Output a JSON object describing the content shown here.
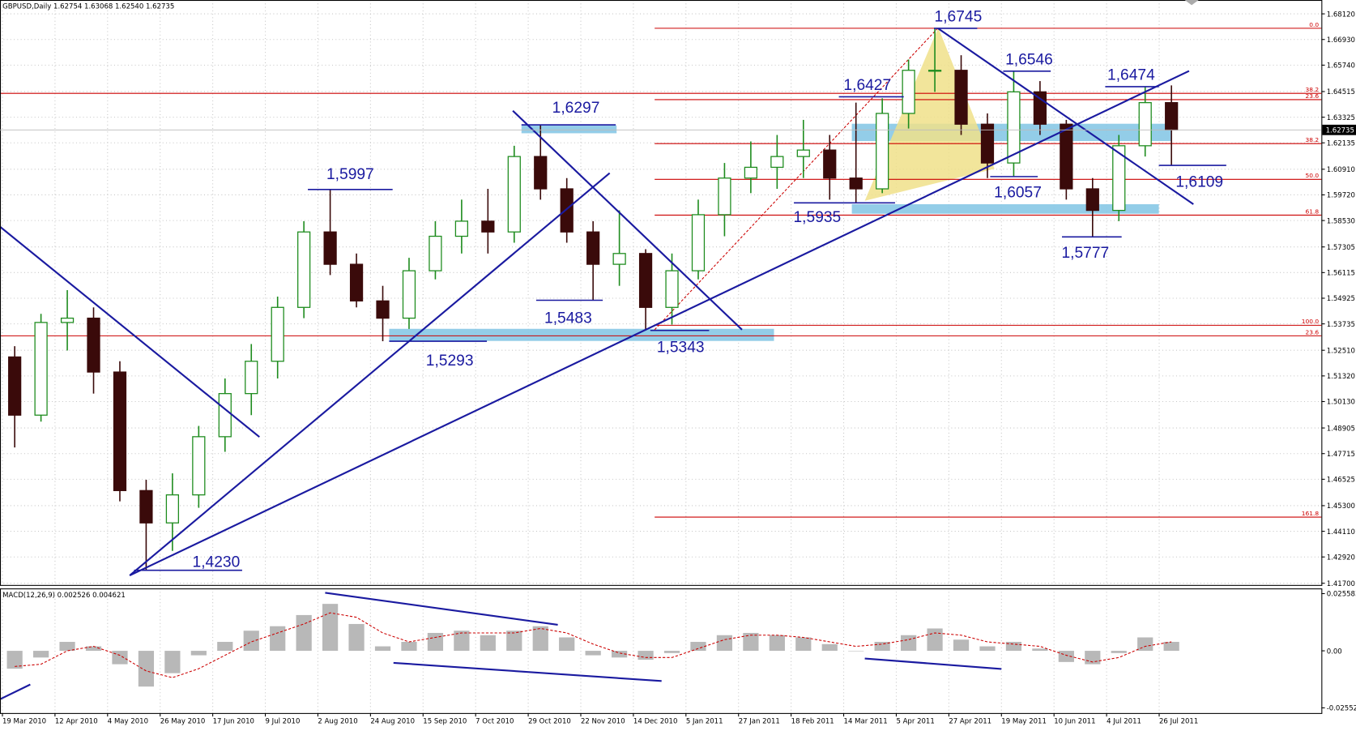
{
  "chart_data": [
    {
      "type": "candlestick",
      "title": "GBPUSD,Daily  1.62754 1.63068 1.62540 1.62735",
      "x_labels": [
        "19 Mar 2010",
        "12 Apr 2010",
        "4 May 2010",
        "26 May 2010",
        "17 Jun 2010",
        "9 Jul 2010",
        "2 Aug 2010",
        "24 Aug 2010",
        "15 Sep 2010",
        "7 Oct 2010",
        "29 Oct 2010",
        "22 Nov 2010",
        "14 Dec 2010",
        "5 Jan 2011",
        "27 Jan 2011",
        "18 Feb 2011",
        "14 Mar 2011",
        "5 Apr 2011",
        "27 Apr 2011",
        "19 May 2011",
        "10 Jun 2011",
        "4 Jul 2011",
        "26 Jul 2011"
      ],
      "open": [
        1.522,
        1.495,
        1.538,
        1.54,
        1.515,
        1.46,
        1.445,
        1.458,
        1.485,
        1.505,
        1.52,
        1.545,
        1.58,
        1.565,
        1.548,
        1.54,
        1.562,
        1.578,
        1.585,
        1.58,
        1.615,
        1.6,
        1.58,
        1.565,
        1.57,
        1.545,
        1.562,
        1.588,
        1.605,
        1.61,
        1.615,
        1.618,
        1.605,
        1.6,
        1.635,
        1.655,
        1.655,
        1.63,
        1.612,
        1.645,
        1.63,
        1.6,
        1.59,
        1.62,
        1.64
      ],
      "high": [
        1.527,
        1.542,
        1.553,
        1.545,
        1.52,
        1.465,
        1.468,
        1.49,
        1.512,
        1.528,
        1.55,
        1.585,
        1.5997,
        1.57,
        1.555,
        1.568,
        1.585,
        1.595,
        1.6,
        1.62,
        1.6297,
        1.605,
        1.585,
        1.59,
        1.572,
        1.57,
        1.595,
        1.612,
        1.622,
        1.625,
        1.632,
        1.625,
        1.64,
        1.642,
        1.66,
        1.6745,
        1.662,
        1.635,
        1.6546,
        1.65,
        1.632,
        1.605,
        1.625,
        1.6474,
        1.648
      ],
      "low": [
        1.48,
        1.492,
        1.525,
        1.505,
        1.455,
        1.423,
        1.432,
        1.452,
        1.478,
        1.495,
        1.512,
        1.54,
        1.56,
        1.545,
        1.5293,
        1.535,
        1.558,
        1.57,
        1.57,
        1.575,
        1.595,
        1.575,
        1.5483,
        1.555,
        1.5343,
        1.537,
        1.558,
        1.578,
        1.598,
        1.6,
        1.605,
        1.595,
        1.5935,
        1.598,
        1.628,
        1.645,
        1.625,
        1.605,
        1.6057,
        1.625,
        1.595,
        1.5777,
        1.585,
        1.615,
        1.6109
      ],
      "close": [
        1.495,
        1.538,
        1.54,
        1.515,
        1.46,
        1.445,
        1.458,
        1.485,
        1.505,
        1.52,
        1.545,
        1.58,
        1.565,
        1.548,
        1.54,
        1.562,
        1.578,
        1.585,
        1.58,
        1.615,
        1.6,
        1.58,
        1.565,
        1.57,
        1.545,
        1.562,
        1.588,
        1.605,
        1.61,
        1.615,
        1.618,
        1.605,
        1.6,
        1.635,
        1.655,
        1.655,
        1.63,
        1.612,
        1.645,
        1.63,
        1.6,
        1.59,
        1.62,
        1.64,
        1.62735
      ],
      "up_color": "#1e8c1e",
      "down_color": "#3a0a0a",
      "ylim": [
        1.417,
        1.6812
      ],
      "yticks": [
        {
          "value": 1.6812,
          "label": "1.68120"
        },
        {
          "value": 1.6693,
          "label": "1.66930"
        },
        {
          "value": 1.6574,
          "label": "1.65740"
        },
        {
          "value": 1.64515,
          "label": "1.64515"
        },
        {
          "value": 1.63325,
          "label": "1.63325"
        },
        {
          "value": 1.62135,
          "label": "1.62135"
        },
        {
          "value": 1.6091,
          "label": "1.60910"
        },
        {
          "value": 1.5972,
          "label": "1.59720"
        },
        {
          "value": 1.5853,
          "label": "1.58530"
        },
        {
          "value": 1.57305,
          "label": "1.57305"
        },
        {
          "value": 1.56115,
          "label": "1.56115"
        },
        {
          "value": 1.54925,
          "label": "1.54925"
        },
        {
          "value": 1.53735,
          "label": "1.53735"
        },
        {
          "value": 1.5251,
          "label": "1.52510"
        },
        {
          "value": 1.5132,
          "label": "1.51320"
        },
        {
          "value": 1.5013,
          "label": "1.50130"
        },
        {
          "value": 1.48905,
          "label": "1.48905"
        },
        {
          "value": 1.47715,
          "label": "1.47715"
        },
        {
          "value": 1.46525,
          "label": "1.46525"
        },
        {
          "value": 1.453,
          "label": "1.45300"
        },
        {
          "value": 1.4411,
          "label": "1.44110"
        },
        {
          "value": 1.4292,
          "label": "1.42920"
        },
        {
          "value": 1.417,
          "label": "1.41700"
        }
      ],
      "grid": true,
      "last_price": {
        "value": 1.62735,
        "label": "1.62735"
      },
      "fib_color": "#cc0000",
      "fib_levels": [
        {
          "value": 1.6745,
          "label": "0.0"
        },
        {
          "value": 1.6443,
          "label": "38.2"
        },
        {
          "value": 1.6414,
          "label": "23.6"
        },
        {
          "value": 1.621,
          "label": "38.2"
        },
        {
          "value": 1.6044,
          "label": "50.0"
        },
        {
          "value": 1.5878,
          "label": "61.8"
        },
        {
          "value": 1.5367,
          "label": "100.0"
        },
        {
          "value": 1.5318,
          "label": "23.6"
        },
        {
          "value": 1.4477,
          "label": "161.8"
        }
      ],
      "annotation_color": "#1a1aa0",
      "annotations": [
        {
          "value": 1.6745,
          "label": "1,6745"
        },
        {
          "value": 1.6546,
          "label": "1,6546"
        },
        {
          "value": 1.6474,
          "label": "1,6474"
        },
        {
          "value": 1.6427,
          "label": "1,6427"
        },
        {
          "value": 1.6297,
          "label": "1,6297"
        },
        {
          "value": 1.5997,
          "label": "1,5997"
        },
        {
          "value": 1.6109,
          "label": "1,6109"
        },
        {
          "value": 1.6057,
          "label": "1,6057"
        },
        {
          "value": 1.5935,
          "label": "1,5935"
        },
        {
          "value": 1.5777,
          "label": "1,5777"
        },
        {
          "value": 1.5483,
          "label": "1,5483"
        },
        {
          "value": 1.5293,
          "label": "1,5293"
        },
        {
          "value": 1.5343,
          "label": "1,5343"
        },
        {
          "value": 1.423,
          "label": "1,4230"
        }
      ]
    },
    {
      "type": "macd",
      "title": "MACD(12,26,9) 0.002526 0.004621",
      "histogram": [
        -0.008,
        -0.003,
        0.004,
        0.002,
        -0.006,
        -0.016,
        -0.01,
        -0.002,
        0.004,
        0.009,
        0.011,
        0.016,
        0.021,
        0.012,
        0.002,
        0.004,
        0.008,
        0.009,
        0.007,
        0.009,
        0.011,
        0.006,
        -0.002,
        -0.003,
        -0.004,
        -0.001,
        0.004,
        0.007,
        0.008,
        0.007,
        0.006,
        0.003,
        0.0,
        0.004,
        0.007,
        0.01,
        0.005,
        0.002,
        0.004,
        0.001,
        -0.005,
        -0.006,
        -0.001,
        0.006,
        0.004
      ],
      "signal": [
        -0.007,
        -0.006,
        0.0,
        0.002,
        -0.002,
        -0.009,
        -0.012,
        -0.008,
        -0.002,
        0.004,
        0.008,
        0.012,
        0.017,
        0.015,
        0.008,
        0.004,
        0.006,
        0.008,
        0.008,
        0.008,
        0.01,
        0.008,
        0.003,
        -0.001,
        -0.003,
        -0.003,
        0.001,
        0.005,
        0.007,
        0.007,
        0.006,
        0.004,
        0.002,
        0.003,
        0.005,
        0.008,
        0.007,
        0.004,
        0.003,
        0.002,
        -0.002,
        -0.005,
        -0.003,
        0.002,
        0.004
      ],
      "histogram_color": "#b8b8b8",
      "signal_color": "#cc0000",
      "ylim": [
        -0.02552,
        0.025583
      ],
      "yticks": [
        0.025583,
        {
          "value": 0,
          "label": "0.00"
        },
        -0.02552
      ]
    }
  ]
}
